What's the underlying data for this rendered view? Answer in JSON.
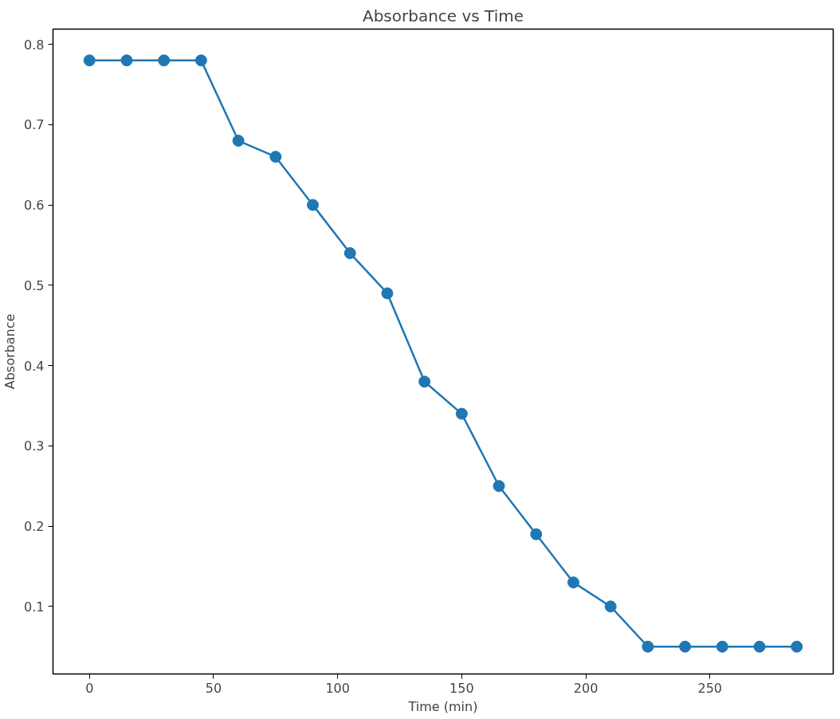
{
  "chart_data": {
    "type": "line",
    "title": "Absorbance vs Time",
    "xlabel": "Time (min)",
    "ylabel": "Absorbance",
    "x": [
      0,
      15,
      30,
      45,
      60,
      75,
      90,
      105,
      120,
      135,
      150,
      165,
      180,
      195,
      210,
      225,
      240,
      255,
      270,
      285
    ],
    "series": [
      {
        "color": "#1f77b4",
        "values": [
          0.78,
          0.78,
          0.78,
          0.78,
          0.68,
          0.66,
          0.6,
          0.54,
          0.49,
          0.38,
          0.34,
          0.25,
          0.19,
          0.13,
          0.1,
          0.05,
          0.05,
          0.05,
          0.05,
          0.05
        ]
      }
    ],
    "xlim": [
      -14.7,
      299.7
    ],
    "ylim": [
      0.016,
      0.819
    ],
    "xticks": [
      0,
      50,
      100,
      150,
      200,
      250
    ],
    "yticks": [
      0.1,
      0.2,
      0.3,
      0.4,
      0.5,
      0.6,
      0.7,
      0.8
    ],
    "marker": "circle",
    "line_style": "solid",
    "grid": false
  }
}
